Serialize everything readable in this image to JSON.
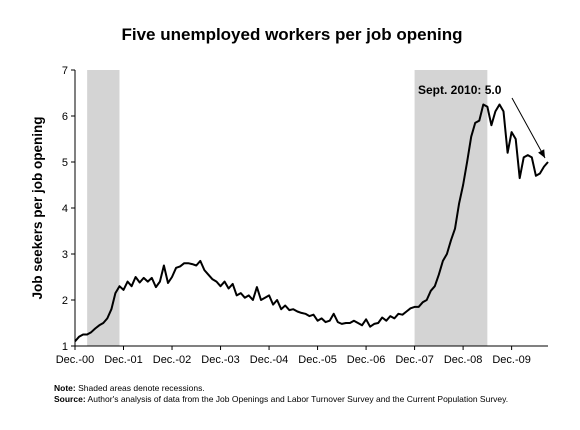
{
  "chart_data": {
    "type": "line",
    "title": "Five unemployed workers per job opening",
    "ylabel": "Job seekers per job opening",
    "xlabel": "",
    "ylim": [
      1,
      7
    ],
    "yticks": [
      1,
      2,
      3,
      4,
      5,
      6,
      7
    ],
    "x_start": "2000-12",
    "x_end": "2010-09",
    "xticks": [
      {
        "label": "Dec.-00",
        "date": "2000-12"
      },
      {
        "label": "Dec.-01",
        "date": "2001-12"
      },
      {
        "label": "Dec.-02",
        "date": "2002-12"
      },
      {
        "label": "Dec.-03",
        "date": "2003-12"
      },
      {
        "label": "Dec.-04",
        "date": "2004-12"
      },
      {
        "label": "Dec.-05",
        "date": "2005-12"
      },
      {
        "label": "Dec.-06",
        "date": "2006-12"
      },
      {
        "label": "Dec.-07",
        "date": "2007-12"
      },
      {
        "label": "Dec.-08",
        "date": "2008-12"
      },
      {
        "label": "Dec.-09",
        "date": "2009-12"
      }
    ],
    "recessions": [
      {
        "start": "2001-03",
        "end": "2001-11"
      },
      {
        "start": "2007-12",
        "end": "2009-06"
      }
    ],
    "series": [
      {
        "x": [
          "2000-12",
          "2001-01",
          "2001-02",
          "2001-03",
          "2001-04",
          "2001-05",
          "2001-06",
          "2001-07",
          "2001-08",
          "2001-09",
          "2001-10",
          "2001-11",
          "2001-12",
          "2002-01",
          "2002-02",
          "2002-03",
          "2002-04",
          "2002-05",
          "2002-06",
          "2002-07",
          "2002-08",
          "2002-09",
          "2002-10",
          "2002-11",
          "2002-12",
          "2003-01",
          "2003-02",
          "2003-03",
          "2003-04",
          "2003-05",
          "2003-06",
          "2003-07",
          "2003-08",
          "2003-09",
          "2003-10",
          "2003-11",
          "2003-12",
          "2004-01",
          "2004-02",
          "2004-03",
          "2004-04",
          "2004-05",
          "2004-06",
          "2004-07",
          "2004-08",
          "2004-09",
          "2004-10",
          "2004-11",
          "2004-12",
          "2005-01",
          "2005-02",
          "2005-03",
          "2005-04",
          "2005-05",
          "2005-06",
          "2005-07",
          "2005-08",
          "2005-09",
          "2005-10",
          "2005-11",
          "2005-12",
          "2006-01",
          "2006-02",
          "2006-03",
          "2006-04",
          "2006-05",
          "2006-06",
          "2006-07",
          "2006-08",
          "2006-09",
          "2006-10",
          "2006-11",
          "2006-12",
          "2007-01",
          "2007-02",
          "2007-03",
          "2007-04",
          "2007-05",
          "2007-06",
          "2007-07",
          "2007-08",
          "2007-09",
          "2007-10",
          "2007-11",
          "2007-12",
          "2008-01",
          "2008-02",
          "2008-03",
          "2008-04",
          "2008-05",
          "2008-06",
          "2008-07",
          "2008-08",
          "2008-09",
          "2008-10",
          "2008-11",
          "2008-12",
          "2009-01",
          "2009-02",
          "2009-03",
          "2009-04",
          "2009-05",
          "2009-06",
          "2009-07",
          "2009-08",
          "2009-09",
          "2009-10",
          "2009-11",
          "2009-12",
          "2010-01",
          "2010-02",
          "2010-03",
          "2010-04",
          "2010-05",
          "2010-06",
          "2010-07",
          "2010-08",
          "2010-09"
        ],
        "values": [
          1.1,
          1.2,
          1.25,
          1.25,
          1.3,
          1.38,
          1.45,
          1.5,
          1.6,
          1.8,
          2.15,
          2.3,
          2.22,
          2.4,
          2.3,
          2.5,
          2.38,
          2.48,
          2.4,
          2.48,
          2.28,
          2.4,
          2.75,
          2.37,
          2.5,
          2.7,
          2.73,
          2.8,
          2.8,
          2.78,
          2.75,
          2.85,
          2.65,
          2.55,
          2.45,
          2.4,
          2.3,
          2.4,
          2.25,
          2.35,
          2.1,
          2.15,
          2.05,
          2.1,
          2.0,
          2.28,
          2.0,
          2.05,
          2.1,
          1.9,
          2.0,
          1.8,
          1.88,
          1.78,
          1.8,
          1.75,
          1.72,
          1.7,
          1.65,
          1.68,
          1.55,
          1.6,
          1.52,
          1.55,
          1.7,
          1.52,
          1.48,
          1.5,
          1.5,
          1.55,
          1.5,
          1.45,
          1.58,
          1.42,
          1.48,
          1.5,
          1.62,
          1.55,
          1.65,
          1.6,
          1.7,
          1.68,
          1.75,
          1.82,
          1.85,
          1.85,
          1.95,
          2.0,
          2.2,
          2.3,
          2.55,
          2.85,
          3.0,
          3.3,
          3.55,
          4.1,
          4.5,
          5.0,
          5.55,
          5.85,
          5.9,
          6.25,
          6.2,
          5.8,
          6.1,
          6.25,
          6.1,
          5.2,
          5.65,
          5.5,
          4.65,
          5.1,
          5.15,
          5.1,
          4.7,
          4.75,
          4.9,
          5.0
        ]
      }
    ],
    "annotation": {
      "text": "Sept. 2010: 5.0",
      "date": "2010-09",
      "value": 5.0
    },
    "legend": "none",
    "grid": false
  },
  "notes": {
    "note_label": "Note:",
    "note_text": " Shaded areas denote recessions.",
    "source_label": "Source:",
    "source_text": " Author's analysis of data from the Job Openings and Labor Turnover Survey and the Current Population Survey."
  }
}
